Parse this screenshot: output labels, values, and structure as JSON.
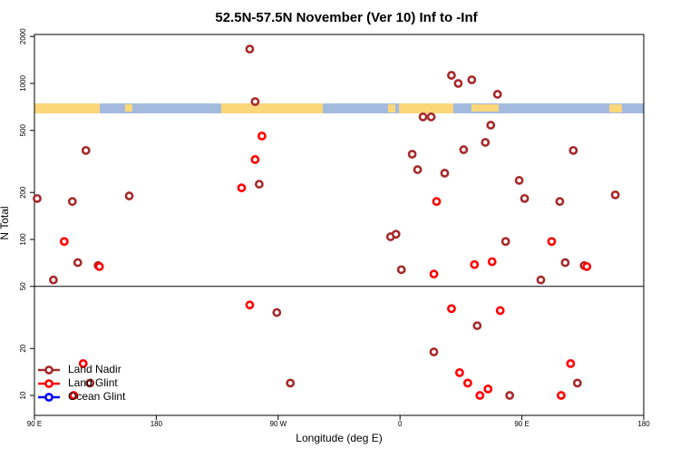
{
  "chart_data": {
    "type": "scatter",
    "title": "52.5N-57.5N November (Ver 10)   Inf to -Inf",
    "xlabel": "Longitude (deg E)",
    "ylabel": "N Total",
    "xlim": [
      90,
      540
    ],
    "ylim": [
      7.45,
      2060
    ],
    "ylog": true,
    "xticks": [
      {
        "value": 90,
        "label": "90 E"
      },
      180,
      {
        "value": 270,
        "label": "90 W"
      },
      {
        "value": 360,
        "label": "0"
      },
      {
        "value": 450,
        "label": "90 E"
      },
      {
        "value": 540,
        "label": "180"
      }
    ],
    "yticks": [
      10,
      20,
      50,
      100,
      200,
      500,
      1000,
      2000
    ],
    "hlines": [
      50
    ],
    "legend": "lower left",
    "series": [
      {
        "name": "Land Nadir",
        "color": "#a52a2a",
        "x": [
          92,
          104,
          118,
          122,
          128,
          131,
          137,
          160,
          249,
          253,
          256,
          269,
          279,
          353,
          357,
          361,
          369,
          373,
          377,
          383,
          385,
          393,
          398,
          403,
          407,
          413,
          417,
          423,
          427,
          432,
          438,
          441,
          448,
          452,
          464,
          478,
          482,
          488,
          491,
          496,
          519
        ],
        "values": [
          183,
          55,
          175,
          71,
          372,
          12,
          68,
          190,
          1660,
          765,
          226,
          34,
          12,
          104,
          108,
          64,
          352,
          280,
          610,
          610,
          19,
          266,
          1127,
          1000,
          376,
          1055,
          28,
          419,
          540,
          852,
          97,
          10,
          239,
          183,
          55,
          175,
          71,
          372,
          12,
          68,
          193
        ]
      },
      {
        "name": "Land Glint",
        "color": "#ff0000",
        "x": [
          112,
          119,
          126,
          138,
          243,
          249,
          253,
          258,
          385,
          387,
          398,
          404,
          410,
          415,
          419,
          425,
          428,
          434,
          472,
          479,
          486,
          498
        ],
        "values": [
          97,
          10,
          16,
          67,
          214,
          38,
          325,
          460,
          60,
          175,
          36,
          14,
          12,
          69,
          10,
          11,
          72,
          35,
          97,
          10,
          16,
          67
        ]
      },
      {
        "name": "Ocean Glint",
        "color": "#0000ff",
        "x": [],
        "values": []
      }
    ]
  }
}
